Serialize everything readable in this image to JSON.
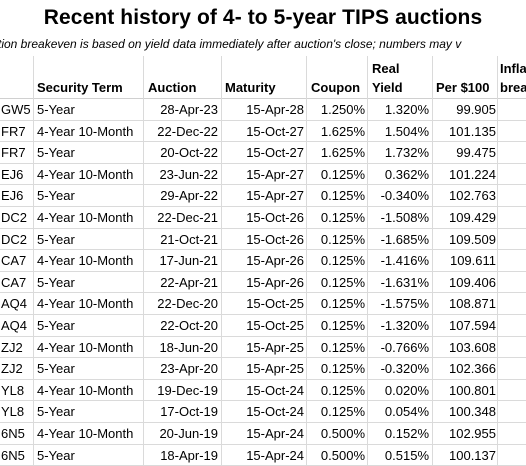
{
  "title": "Recent history of 4- to 5-year TIPS auctions",
  "subtitle": "tion breakeven is based on yield data immediately after auction's close; numbers may v",
  "headers": {
    "term": "Security Term",
    "auction": "Auction",
    "maturity": "Maturity",
    "coupon": "Coupon",
    "yield_top": "Real",
    "yield_bottom": "Yield",
    "price": "Per $100",
    "inflation_top": "Infla",
    "inflation_bottom": "break"
  },
  "rows": [
    {
      "cusip": "GW5",
      "term": "5-Year",
      "auction": "28-Apr-23",
      "maturity": "15-Apr-28",
      "coupon": "1.250%",
      "yield": "1.320%",
      "price": "99.905"
    },
    {
      "cusip": "FR7",
      "term": "4-Year 10-Month",
      "auction": "22-Dec-22",
      "maturity": "15-Oct-27",
      "coupon": "1.625%",
      "yield": "1.504%",
      "price": "101.135"
    },
    {
      "cusip": "FR7",
      "term": "5-Year",
      "auction": "20-Oct-22",
      "maturity": "15-Oct-27",
      "coupon": "1.625%",
      "yield": "1.732%",
      "price": "99.475"
    },
    {
      "cusip": "EJ6",
      "term": "4-Year 10-Month",
      "auction": "23-Jun-22",
      "maturity": "15-Apr-27",
      "coupon": "0.125%",
      "yield": "0.362%",
      "price": "101.224"
    },
    {
      "cusip": "EJ6",
      "term": "5-Year",
      "auction": "29-Apr-22",
      "maturity": "15-Apr-27",
      "coupon": "0.125%",
      "yield": "-0.340%",
      "price": "102.763"
    },
    {
      "cusip": "DC2",
      "term": "4-Year 10-Month",
      "auction": "22-Dec-21",
      "maturity": "15-Oct-26",
      "coupon": "0.125%",
      "yield": "-1.508%",
      "price": "109.429"
    },
    {
      "cusip": "DC2",
      "term": "5-Year",
      "auction": "21-Oct-21",
      "maturity": "15-Oct-26",
      "coupon": "0.125%",
      "yield": "-1.685%",
      "price": "109.509"
    },
    {
      "cusip": "CA7",
      "term": "4-Year 10-Month",
      "auction": "17-Jun-21",
      "maturity": "15-Apr-26",
      "coupon": "0.125%",
      "yield": "-1.416%",
      "price": "109.611"
    },
    {
      "cusip": "CA7",
      "term": "5-Year",
      "auction": "22-Apr-21",
      "maturity": "15-Apr-26",
      "coupon": "0.125%",
      "yield": "-1.631%",
      "price": "109.406"
    },
    {
      "cusip": "AQ4",
      "term": "4-Year 10-Month",
      "auction": "22-Dec-20",
      "maturity": "15-Oct-25",
      "coupon": "0.125%",
      "yield": "-1.575%",
      "price": "108.871"
    },
    {
      "cusip": "AQ4",
      "term": "5-Year",
      "auction": "22-Oct-20",
      "maturity": "15-Oct-25",
      "coupon": "0.125%",
      "yield": "-1.320%",
      "price": "107.594"
    },
    {
      "cusip": "ZJ2",
      "term": "4-Year 10-Month",
      "auction": "18-Jun-20",
      "maturity": "15-Apr-25",
      "coupon": "0.125%",
      "yield": "-0.766%",
      "price": "103.608"
    },
    {
      "cusip": "ZJ2",
      "term": "5-Year",
      "auction": "23-Apr-20",
      "maturity": "15-Apr-25",
      "coupon": "0.125%",
      "yield": "-0.320%",
      "price": "102.366"
    },
    {
      "cusip": "YL8",
      "term": "4-Year 10-Month",
      "auction": "19-Dec-19",
      "maturity": "15-Oct-24",
      "coupon": "0.125%",
      "yield": "0.020%",
      "price": "100.801"
    },
    {
      "cusip": "YL8",
      "term": "5-Year",
      "auction": "17-Oct-19",
      "maturity": "15-Oct-24",
      "coupon": "0.125%",
      "yield": "0.054%",
      "price": "100.348"
    },
    {
      "cusip": "6N5",
      "term": "4-Year 10-Month",
      "auction": "20-Jun-19",
      "maturity": "15-Apr-24",
      "coupon": "0.500%",
      "yield": "0.152%",
      "price": "102.955"
    },
    {
      "cusip": "6N5",
      "term": "5-Year",
      "auction": "18-Apr-19",
      "maturity": "15-Apr-24",
      "coupon": "0.500%",
      "yield": "0.515%",
      "price": "100.137"
    }
  ]
}
